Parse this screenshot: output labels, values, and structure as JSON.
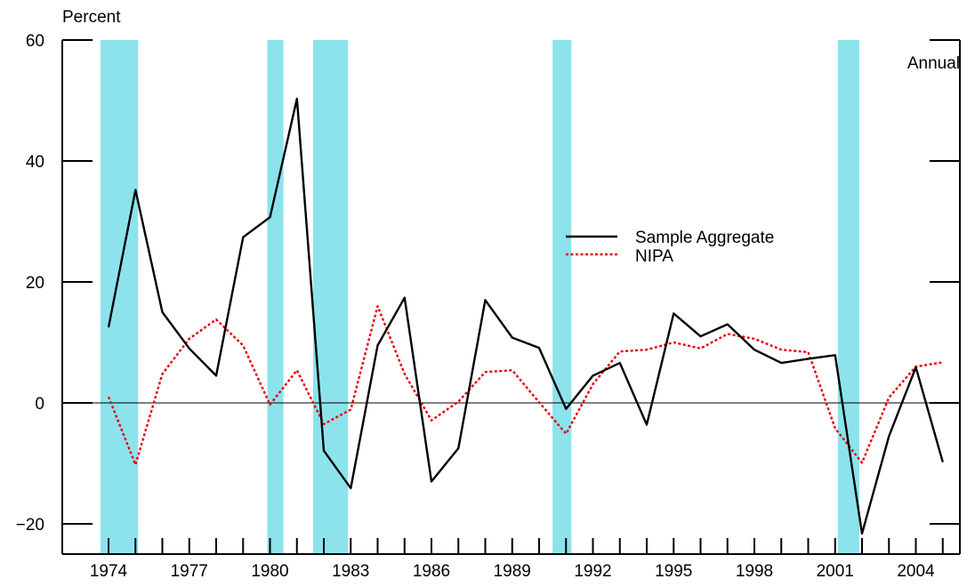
{
  "chart_data": {
    "type": "line",
    "title": "",
    "ylabel": "Percent",
    "xlabel": "",
    "annotation": "Annual",
    "ylim": [
      -25,
      60
    ],
    "xlim": [
      1973,
      2006
    ],
    "yticks": [
      60,
      40,
      20,
      0,
      -20
    ],
    "ytick_labels": [
      "60",
      "40",
      "20",
      "0",
      "−20"
    ],
    "xticks": [
      1974,
      1977,
      1980,
      1983,
      1986,
      1989,
      1992,
      1995,
      1998,
      2001,
      2004
    ],
    "xtick_labels": [
      "1974",
      "1977",
      "1980",
      "1983",
      "1986",
      "1989",
      "1992",
      "1995",
      "1998",
      "2001",
      "2004"
    ],
    "grid": false,
    "legend_position": "center-right",
    "recessions": [
      {
        "start": 1973.7,
        "end": 1975.1
      },
      {
        "start": 1979.9,
        "end": 1980.5
      },
      {
        "start": 1981.6,
        "end": 1982.9
      },
      {
        "start": 1990.5,
        "end": 1991.2
      },
      {
        "start": 2001.1,
        "end": 2001.9
      }
    ],
    "x": [
      1974,
      1975,
      1976,
      1977,
      1978,
      1979,
      1980,
      1981,
      1982,
      1983,
      1984,
      1985,
      1986,
      1987,
      1988,
      1989,
      1990,
      1991,
      1992,
      1993,
      1994,
      1995,
      1996,
      1997,
      1998,
      1999,
      2000,
      2001,
      2002,
      2003,
      2004,
      2005
    ],
    "series": [
      {
        "name": "Sample Aggregate",
        "color": "#000000",
        "style": "solid",
        "values": [
          12.5,
          35.2,
          15.0,
          9.0,
          4.5,
          27.4,
          30.7,
          50.3,
          -7.9,
          -14.1,
          9.5,
          17.4,
          -13.0,
          -7.5,
          17.0,
          10.8,
          9.1,
          -1.0,
          4.5,
          6.6,
          -3.6,
          14.8,
          11.0,
          13.0,
          8.8,
          6.6,
          7.3,
          7.9,
          -21.6,
          -5.5,
          5.9,
          -9.8
        ]
      },
      {
        "name": "NIPA",
        "color": "#e8000b",
        "style": "dotted",
        "values": [
          1.0,
          -10.2,
          4.8,
          10.6,
          13.8,
          9.5,
          -0.3,
          5.4,
          -3.5,
          -1.1,
          16.0,
          4.8,
          -2.9,
          0.2,
          5.1,
          5.4,
          0.1,
          -5.1,
          3.1,
          8.5,
          8.8,
          10.0,
          9.0,
          11.4,
          10.6,
          8.8,
          8.4,
          -4.2,
          -9.9,
          0.9,
          6.0,
          6.7
        ]
      }
    ],
    "colors": {
      "recession": "#8ce3ec",
      "axis": "#000000"
    }
  }
}
